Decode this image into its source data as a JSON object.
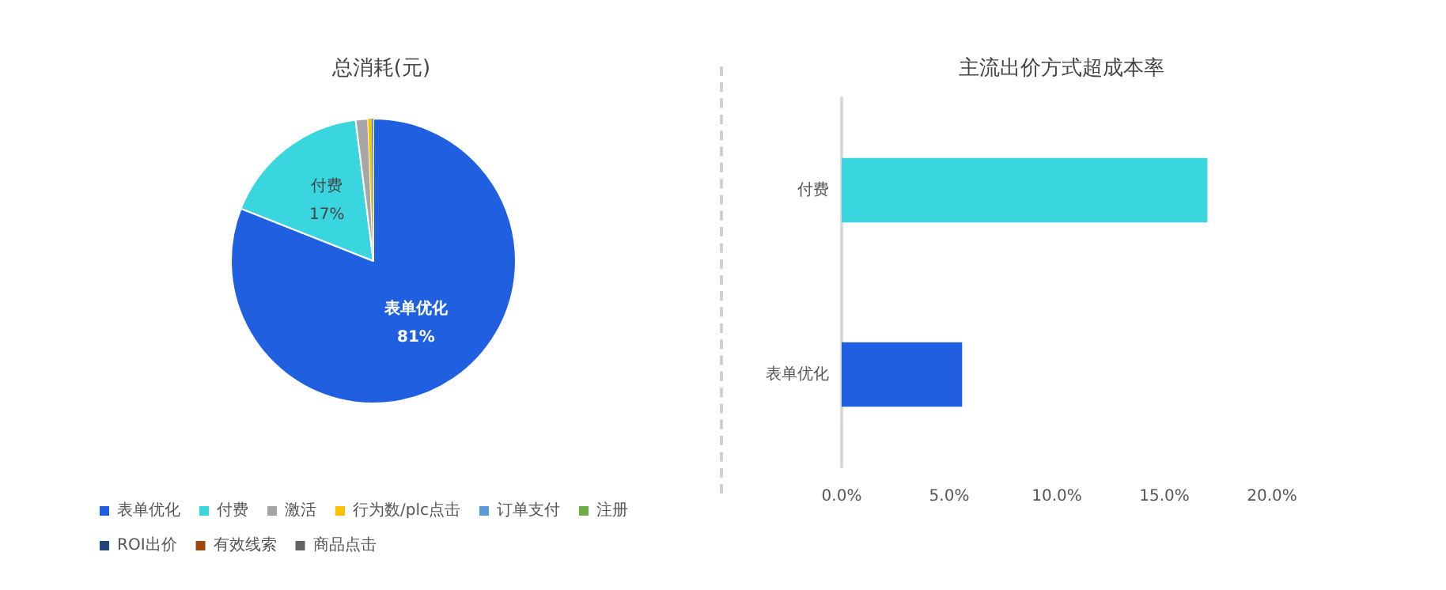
{
  "chart_data": [
    {
      "type": "pie",
      "title": "总消耗(元)",
      "categories": [
        "表单优化",
        "付费",
        "激活",
        "行为数/plc点击",
        "订单支付",
        "注册",
        "ROI出价",
        "有效线索",
        "商品点击"
      ],
      "values": [
        81,
        17,
        1.4,
        0.4,
        0.2,
        0,
        0,
        0,
        0
      ],
      "colors": [
        "#2060e0",
        "#3ad6e0",
        "#a6a6a6",
        "#ffc000",
        "#5b9bd5",
        "#70ad47",
        "#264478",
        "#9e480e",
        "#636363"
      ],
      "value_labels": [
        "81%",
        "17%",
        null,
        null,
        null,
        null,
        null,
        null,
        null
      ],
      "legend": "bottom left"
    },
    {
      "type": "bar",
      "orientation": "horizontal",
      "title": "主流出价方式超成本率",
      "categories": [
        "付费",
        "表单优化"
      ],
      "values": [
        17.0,
        5.6
      ],
      "colors": [
        "#3ad6e0",
        "#2060e0"
      ],
      "xlim": [
        0,
        20
      ],
      "xticks": [
        {
          "value": 0,
          "label": "0.0%"
        },
        {
          "value": 5,
          "label": "5.0%"
        },
        {
          "value": 10,
          "label": "10.0%"
        },
        {
          "value": 15,
          "label": "15.0%"
        },
        {
          "value": 20,
          "label": "20.0%"
        }
      ],
      "grid": false
    }
  ]
}
